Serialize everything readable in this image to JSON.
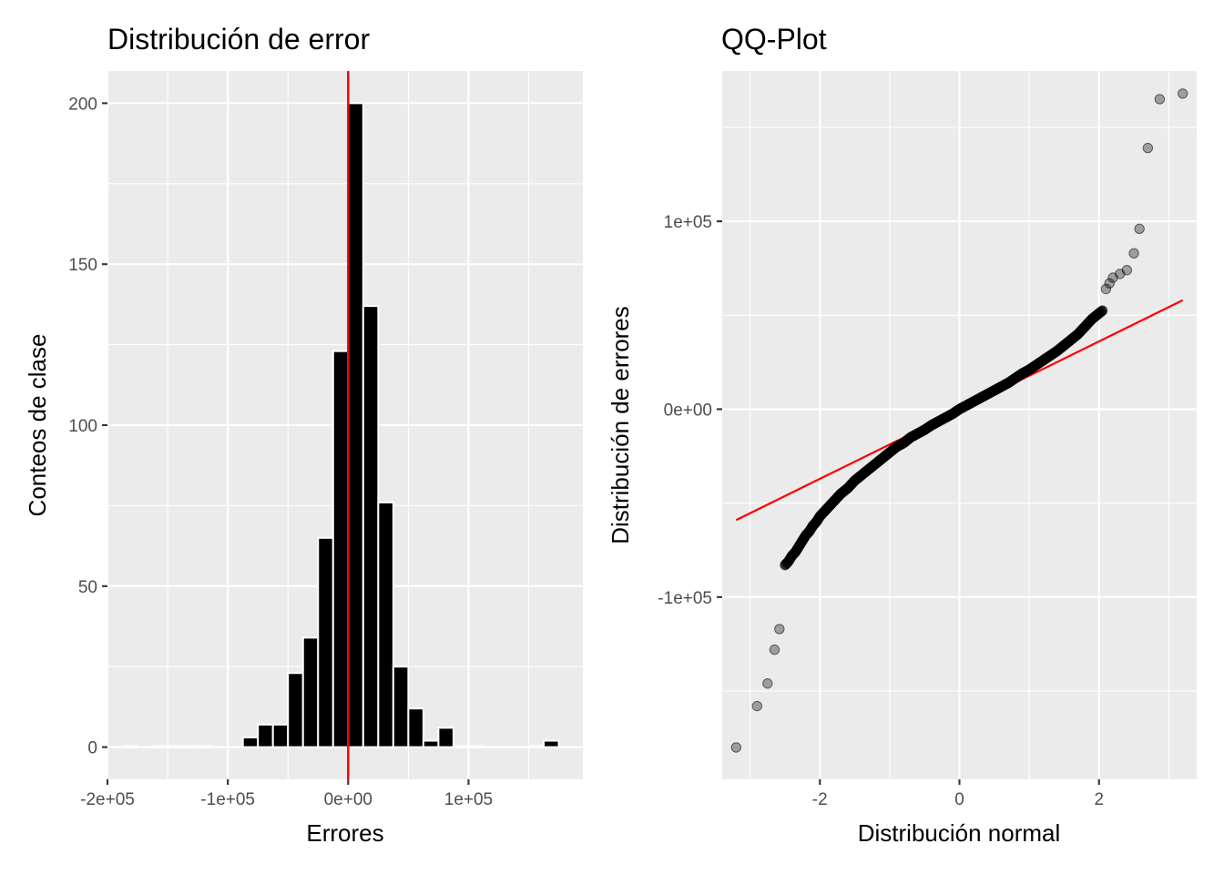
{
  "chart_data": [
    {
      "type": "bar",
      "subtype": "histogram",
      "title": "Distribución de error",
      "xlabel": "Errores",
      "ylabel": "Conteos de clase",
      "xlim": [
        -200000,
        195000
      ],
      "ylim": [
        -10,
        210
      ],
      "x_ticks": [
        -200000,
        -100000,
        0,
        100000
      ],
      "x_tick_labels": [
        "-2e+05",
        "-1e+05",
        "0e+00",
        "1e+05"
      ],
      "y_ticks": [
        0,
        50,
        100,
        150,
        200
      ],
      "y_tick_labels": [
        "0",
        "50",
        "100",
        "150",
        "200"
      ],
      "bin_width": 12500,
      "bin_centers": [
        -181250,
        -168750,
        -156250,
        -143750,
        -131250,
        -118750,
        -106250,
        -93750,
        -81250,
        -68750,
        -56250,
        -43750,
        -31250,
        -18750,
        -6250,
        6250,
        18750,
        31250,
        43750,
        56250,
        68750,
        81250,
        93750,
        106250,
        118750,
        131250,
        143750,
        156250,
        168750
      ],
      "values": [
        0.3,
        0,
        0.3,
        0.3,
        0.3,
        0.3,
        0,
        0,
        3,
        7,
        7,
        23,
        34,
        65,
        123,
        200,
        137,
        76,
        25,
        12,
        2,
        6,
        0.3,
        0.3,
        0,
        0,
        0,
        0.3,
        2
      ],
      "vline": 0,
      "vline_color": "#ff0000",
      "grid": true,
      "legend": "none"
    },
    {
      "type": "scatter",
      "subtype": "qq-plot",
      "title": "QQ-Plot",
      "xlabel": "Distribución normal",
      "ylabel": "Distribución de errores",
      "xlim": [
        -3.4,
        3.4
      ],
      "ylim": [
        -197000,
        180000
      ],
      "x_ticks": [
        -2,
        0,
        2
      ],
      "x_tick_labels": [
        "-2",
        "0",
        "2"
      ],
      "y_ticks": [
        -100000,
        0,
        100000
      ],
      "y_tick_labels": [
        "-1e+05",
        "0e+00",
        "1e+05"
      ],
      "n_points": 700,
      "points": [
        [
          -3.2,
          -180000
        ],
        [
          -2.9,
          -158000
        ],
        [
          -2.75,
          -146000
        ],
        [
          -2.65,
          -128000
        ],
        [
          -2.58,
          -117000
        ],
        [
          -2.5,
          -83000
        ],
        [
          -2.45,
          -81000
        ],
        [
          -2.4,
          -78000
        ],
        [
          -2.35,
          -76000
        ],
        [
          -2.3,
          -73000
        ],
        [
          -2.25,
          -70000
        ],
        [
          -2.2,
          -67000
        ],
        [
          -2.15,
          -65000
        ],
        [
          -2.1,
          -62000
        ],
        [
          -2.05,
          -60000
        ],
        [
          -2.0,
          -57000
        ],
        [
          -1.9,
          -53000
        ],
        [
          -1.8,
          -49000
        ],
        [
          -1.7,
          -45000
        ],
        [
          -1.6,
          -42000
        ],
        [
          -1.5,
          -38000
        ],
        [
          -1.4,
          -35000
        ],
        [
          -1.3,
          -32000
        ],
        [
          -1.2,
          -29000
        ],
        [
          -1.1,
          -26000
        ],
        [
          -1.0,
          -23000
        ],
        [
          -0.9,
          -20000
        ],
        [
          -0.8,
          -18000
        ],
        [
          -0.7,
          -15000
        ],
        [
          -0.6,
          -13000
        ],
        [
          -0.5,
          -11000
        ],
        [
          -0.4,
          -8500
        ],
        [
          -0.3,
          -6500
        ],
        [
          -0.2,
          -4500
        ],
        [
          -0.1,
          -2500
        ],
        [
          0.0,
          0
        ],
        [
          0.1,
          2000
        ],
        [
          0.2,
          4000
        ],
        [
          0.3,
          6000
        ],
        [
          0.4,
          8000
        ],
        [
          0.5,
          10000
        ],
        [
          0.6,
          12000
        ],
        [
          0.7,
          14000
        ],
        [
          0.8,
          16500
        ],
        [
          0.9,
          19000
        ],
        [
          1.0,
          21000
        ],
        [
          1.1,
          23500
        ],
        [
          1.2,
          26000
        ],
        [
          1.3,
          28500
        ],
        [
          1.4,
          31000
        ],
        [
          1.5,
          34000
        ],
        [
          1.6,
          37000
        ],
        [
          1.7,
          40000
        ],
        [
          1.8,
          44000
        ],
        [
          1.9,
          48000
        ],
        [
          2.0,
          51000
        ],
        [
          2.05,
          52500
        ],
        [
          2.1,
          64000
        ],
        [
          2.15,
          67000
        ],
        [
          2.2,
          70000
        ],
        [
          2.3,
          72000
        ],
        [
          2.4,
          74000
        ],
        [
          2.5,
          83000
        ],
        [
          2.58,
          96000
        ],
        [
          2.7,
          139000
        ],
        [
          2.87,
          165000
        ],
        [
          3.2,
          168000
        ]
      ],
      "reference_line": {
        "x": [
          -3.2,
          3.2
        ],
        "y": [
          -59000,
          58000
        ],
        "color": "#ff0000"
      },
      "grid": true,
      "legend": "none"
    }
  ]
}
